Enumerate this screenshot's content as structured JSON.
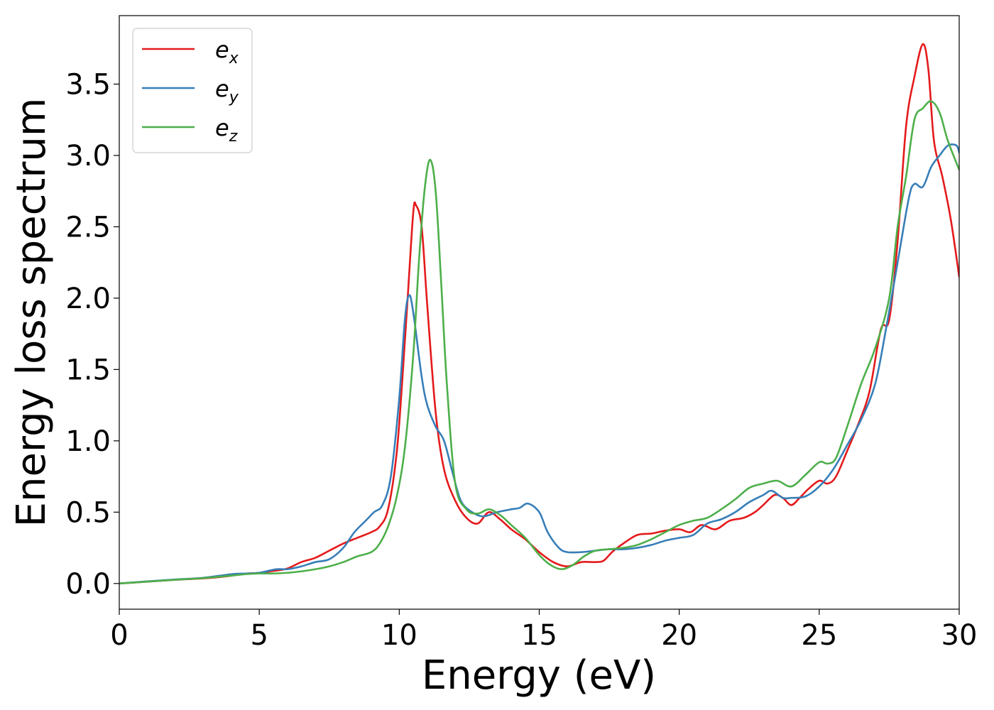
{
  "chart_data": {
    "type": "line",
    "title": "",
    "xlabel": "Energy (eV)",
    "ylabel": "Energy loss spectrum",
    "xlim": [
      0,
      30
    ],
    "ylim": [
      -0.18,
      3.98
    ],
    "xticks": [
      0,
      5,
      10,
      15,
      20,
      25,
      30
    ],
    "xtick_labels": [
      "0",
      "5",
      "10",
      "15",
      "20",
      "25",
      "30"
    ],
    "yticks": [
      0.0,
      0.5,
      1.0,
      1.5,
      2.0,
      2.5,
      3.0,
      3.5
    ],
    "ytick_labels": [
      "0.0",
      "0.5",
      "1.0",
      "1.5",
      "2.0",
      "2.5",
      "3.0",
      "3.5"
    ],
    "grid": false,
    "legend_position": "top-left",
    "series": [
      {
        "name": "e_x",
        "legend_base": "e",
        "legend_sub": "x",
        "color": "#e41a1c",
        "points": [
          [
            0,
            0
          ],
          [
            1,
            0.013
          ],
          [
            2,
            0.026
          ],
          [
            3,
            0.036
          ],
          [
            3.8,
            0.05
          ],
          [
            4.5,
            0.068
          ],
          [
            5,
            0.075
          ],
          [
            5.5,
            0.088
          ],
          [
            6,
            0.105
          ],
          [
            6.5,
            0.15
          ],
          [
            7,
            0.18
          ],
          [
            7.5,
            0.23
          ],
          [
            8,
            0.28
          ],
          [
            8.5,
            0.32
          ],
          [
            9,
            0.36
          ],
          [
            9.3,
            0.4
          ],
          [
            9.6,
            0.52
          ],
          [
            9.9,
            0.9
          ],
          [
            10.1,
            1.4
          ],
          [
            10.3,
            2.0
          ],
          [
            10.5,
            2.6
          ],
          [
            10.6,
            2.65
          ],
          [
            10.8,
            2.5
          ],
          [
            11,
            1.95
          ],
          [
            11.3,
            1.2
          ],
          [
            11.6,
            0.8
          ],
          [
            12,
            0.58
          ],
          [
            12.4,
            0.46
          ],
          [
            12.8,
            0.42
          ],
          [
            13.2,
            0.5
          ],
          [
            13.6,
            0.45
          ],
          [
            14,
            0.38
          ],
          [
            14.5,
            0.31
          ],
          [
            15,
            0.22
          ],
          [
            15.5,
            0.15
          ],
          [
            16,
            0.12
          ],
          [
            16.5,
            0.15
          ],
          [
            17,
            0.15
          ],
          [
            17.3,
            0.16
          ],
          [
            17.6,
            0.22
          ],
          [
            18,
            0.28
          ],
          [
            18.5,
            0.34
          ],
          [
            19,
            0.35
          ],
          [
            19.5,
            0.37
          ],
          [
            20,
            0.38
          ],
          [
            20.4,
            0.36
          ],
          [
            20.8,
            0.41
          ],
          [
            21.3,
            0.38
          ],
          [
            21.8,
            0.44
          ],
          [
            22.3,
            0.46
          ],
          [
            22.7,
            0.5
          ],
          [
            23,
            0.55
          ],
          [
            23.4,
            0.62
          ],
          [
            23.7,
            0.6
          ],
          [
            24,
            0.55
          ],
          [
            24.3,
            0.6
          ],
          [
            24.6,
            0.66
          ],
          [
            25,
            0.72
          ],
          [
            25.3,
            0.7
          ],
          [
            25.6,
            0.75
          ],
          [
            26,
            0.93
          ],
          [
            26.4,
            1.12
          ],
          [
            26.8,
            1.35
          ],
          [
            27.2,
            1.78
          ],
          [
            27.5,
            1.85
          ],
          [
            27.8,
            2.4
          ],
          [
            28.1,
            3.2
          ],
          [
            28.4,
            3.55
          ],
          [
            28.7,
            3.78
          ],
          [
            28.9,
            3.6
          ],
          [
            29.1,
            3.1
          ],
          [
            29.4,
            2.85
          ],
          [
            29.7,
            2.55
          ],
          [
            30,
            2.15
          ]
        ]
      },
      {
        "name": "e_y",
        "legend_base": "e",
        "legend_sub": "y",
        "color": "#377eb8",
        "points": [
          [
            0,
            0
          ],
          [
            1,
            0.015
          ],
          [
            2,
            0.028
          ],
          [
            3,
            0.04
          ],
          [
            4,
            0.065
          ],
          [
            4.5,
            0.07
          ],
          [
            5,
            0.075
          ],
          [
            5.6,
            0.1
          ],
          [
            6,
            0.1
          ],
          [
            6.5,
            0.12
          ],
          [
            7,
            0.15
          ],
          [
            7.5,
            0.17
          ],
          [
            8,
            0.25
          ],
          [
            8.4,
            0.36
          ],
          [
            8.8,
            0.44
          ],
          [
            9.1,
            0.5
          ],
          [
            9.4,
            0.55
          ],
          [
            9.7,
            0.75
          ],
          [
            10,
            1.3
          ],
          [
            10.2,
            1.85
          ],
          [
            10.35,
            2.02
          ],
          [
            10.5,
            1.9
          ],
          [
            10.8,
            1.45
          ],
          [
            11,
            1.25
          ],
          [
            11.3,
            1.1
          ],
          [
            11.6,
            1.0
          ],
          [
            11.9,
            0.78
          ],
          [
            12.2,
            0.58
          ],
          [
            12.6,
            0.5
          ],
          [
            13,
            0.47
          ],
          [
            13.5,
            0.5
          ],
          [
            14,
            0.52
          ],
          [
            14.3,
            0.53
          ],
          [
            14.6,
            0.56
          ],
          [
            15,
            0.5
          ],
          [
            15.3,
            0.36
          ],
          [
            15.7,
            0.25
          ],
          [
            16,
            0.22
          ],
          [
            16.5,
            0.22
          ],
          [
            17,
            0.23
          ],
          [
            17.5,
            0.24
          ],
          [
            18,
            0.24
          ],
          [
            18.5,
            0.25
          ],
          [
            19,
            0.27
          ],
          [
            19.5,
            0.3
          ],
          [
            20,
            0.32
          ],
          [
            20.5,
            0.34
          ],
          [
            21,
            0.42
          ],
          [
            21.5,
            0.45
          ],
          [
            22,
            0.5
          ],
          [
            22.5,
            0.57
          ],
          [
            23,
            0.62
          ],
          [
            23.3,
            0.65
          ],
          [
            23.7,
            0.6
          ],
          [
            24,
            0.6
          ],
          [
            24.5,
            0.61
          ],
          [
            25,
            0.68
          ],
          [
            25.5,
            0.8
          ],
          [
            26,
            0.97
          ],
          [
            26.5,
            1.15
          ],
          [
            27,
            1.4
          ],
          [
            27.4,
            1.8
          ],
          [
            27.8,
            2.25
          ],
          [
            28.2,
            2.7
          ],
          [
            28.4,
            2.8
          ],
          [
            28.7,
            2.78
          ],
          [
            29,
            2.92
          ],
          [
            29.3,
            3.0
          ],
          [
            29.6,
            3.07
          ],
          [
            29.9,
            3.07
          ],
          [
            30,
            3.02
          ]
        ]
      },
      {
        "name": "e_z",
        "legend_base": "e",
        "legend_sub": "z",
        "color": "#4daf4a",
        "points": [
          [
            0,
            0
          ],
          [
            1,
            0.013
          ],
          [
            2,
            0.026
          ],
          [
            3,
            0.038
          ],
          [
            4,
            0.055
          ],
          [
            4.5,
            0.065
          ],
          [
            5,
            0.07
          ],
          [
            5.5,
            0.07
          ],
          [
            6,
            0.075
          ],
          [
            6.5,
            0.085
          ],
          [
            7,
            0.1
          ],
          [
            7.5,
            0.12
          ],
          [
            8,
            0.15
          ],
          [
            8.5,
            0.19
          ],
          [
            9,
            0.22
          ],
          [
            9.3,
            0.28
          ],
          [
            9.6,
            0.4
          ],
          [
            9.9,
            0.6
          ],
          [
            10.2,
            0.95
          ],
          [
            10.5,
            1.6
          ],
          [
            10.7,
            2.25
          ],
          [
            10.9,
            2.75
          ],
          [
            11.1,
            2.97
          ],
          [
            11.3,
            2.75
          ],
          [
            11.5,
            2.1
          ],
          [
            11.7,
            1.4
          ],
          [
            12,
            0.7
          ],
          [
            12.4,
            0.52
          ],
          [
            12.8,
            0.49
          ],
          [
            13.2,
            0.52
          ],
          [
            13.6,
            0.48
          ],
          [
            14,
            0.41
          ],
          [
            14.5,
            0.32
          ],
          [
            15,
            0.2
          ],
          [
            15.4,
            0.13
          ],
          [
            15.8,
            0.1
          ],
          [
            16.2,
            0.13
          ],
          [
            16.6,
            0.19
          ],
          [
            17,
            0.23
          ],
          [
            17.5,
            0.24
          ],
          [
            18,
            0.25
          ],
          [
            18.5,
            0.27
          ],
          [
            19,
            0.31
          ],
          [
            19.5,
            0.36
          ],
          [
            20,
            0.41
          ],
          [
            20.5,
            0.44
          ],
          [
            21,
            0.46
          ],
          [
            21.5,
            0.52
          ],
          [
            22,
            0.59
          ],
          [
            22.5,
            0.67
          ],
          [
            23,
            0.7
          ],
          [
            23.5,
            0.72
          ],
          [
            24,
            0.68
          ],
          [
            24.5,
            0.76
          ],
          [
            25,
            0.85
          ],
          [
            25.3,
            0.84
          ],
          [
            25.6,
            0.88
          ],
          [
            26,
            1.1
          ],
          [
            26.5,
            1.4
          ],
          [
            27,
            1.65
          ],
          [
            27.5,
            2.0
          ],
          [
            27.8,
            2.5
          ],
          [
            28.1,
            2.85
          ],
          [
            28.4,
            3.25
          ],
          [
            28.7,
            3.33
          ],
          [
            29,
            3.38
          ],
          [
            29.3,
            3.3
          ],
          [
            29.6,
            3.1
          ],
          [
            30,
            2.9
          ]
        ]
      }
    ]
  }
}
